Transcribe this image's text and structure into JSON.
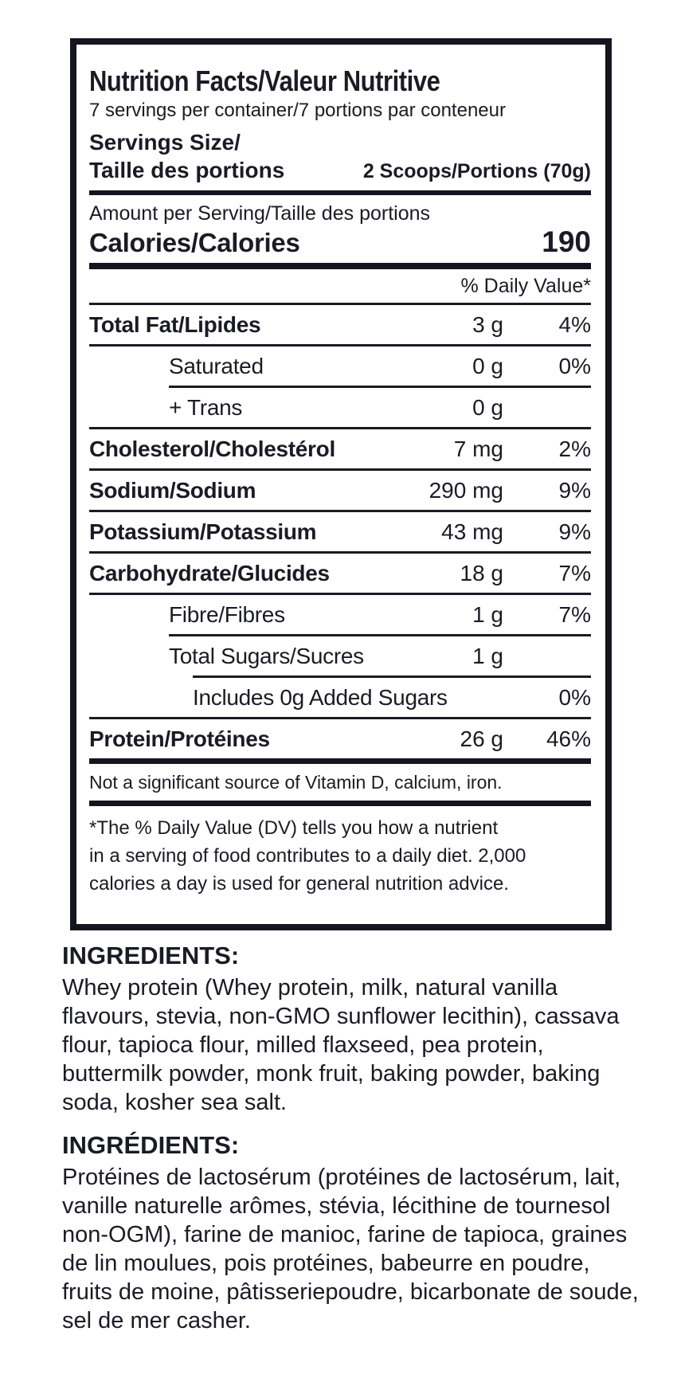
{
  "label": {
    "title": "Nutrition Facts/Valeur Nutritive",
    "servings_per_container": "7 servings per container/7 portions par conteneur",
    "serving_size_en": "Servings Size/",
    "serving_size_fr": "Taille des portions",
    "serving_size_value": "2 Scoops/Portions (70g)",
    "amount_per_serving": "Amount per Serving/Taille des portions",
    "calories_label": "Calories/Calories",
    "calories_value": "190",
    "daily_value_header": "% Daily Value*",
    "rows": [
      {
        "name": "Total Fat/Lipides",
        "amount": "3 g",
        "dv": "4%"
      },
      {
        "name": "Saturated",
        "amount": "0 g",
        "dv": "0%"
      },
      {
        "name": "+ Trans",
        "amount": "0 g",
        "dv": ""
      },
      {
        "name": "Cholesterol/Cholestérol",
        "amount": "7 mg",
        "dv": "2%"
      },
      {
        "name": "Sodium/Sodium",
        "amount": "290 mg",
        "dv": "9%"
      },
      {
        "name": "Potassium/Potassium",
        "amount": "43 mg",
        "dv": "9%"
      },
      {
        "name": "Carbohydrate/Glucides",
        "amount": "18 g",
        "dv": "7%"
      },
      {
        "name": "Fibre/Fibres",
        "amount": "1 g",
        "dv": "7%"
      },
      {
        "name": "Total Sugars/Sucres",
        "amount": "1 g",
        "dv": ""
      },
      {
        "name": "Includes 0g Added Sugars",
        "amount": "",
        "dv": "0%"
      },
      {
        "name": "Protein/Protéines",
        "amount": "26 g",
        "dv": "46%"
      }
    ],
    "not_significant": "Not a significant source of Vitamin D, calcium, iron.",
    "footnote_lines": [
      "*The % Daily Value (DV) tells you how a nutrient",
      "in a serving of food contributes to a daily diet. 2,000",
      "calories a day is used for general nutrition advice."
    ]
  },
  "ingredients": {
    "heading_en": "INGREDIENTS:",
    "text_en": "Whey protein (Whey protein, milk, natural vanilla flavours, stevia, non-GMO sunflower lecithin), cassava flour, tapioca flour, milled flaxseed, pea protein, buttermilk powder, monk fruit, baking powder, baking soda, kosher sea salt.",
    "heading_fr": "INGRÉDIENTS:",
    "text_fr": "Protéines de lactosérum (protéines de lactosérum, lait, vanille naturelle arômes, stévia, lécithine de tournesol non-OGM), farine de manioc, farine de tapioca, graines de lin moulues, pois protéines, babeurre en poudre, fruits de moine, pâtisseriepoudre, bicarbonate de soude, sel de mer casher."
  },
  "colors": {
    "text": "#1b1b25",
    "border": "#15151f",
    "background": "#ffffff"
  }
}
